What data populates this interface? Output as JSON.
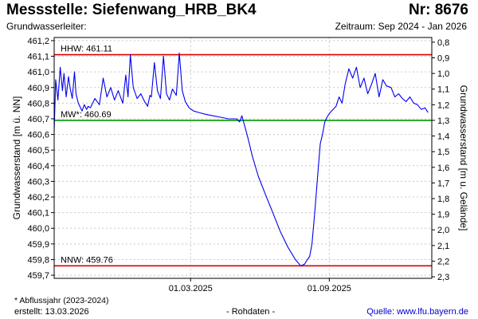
{
  "header": {
    "title": "Messstelle: Siefenwang_HRB_BK4",
    "number": "Nr: 8676",
    "subtitle_left": "Grundwasserleiter:",
    "period": "Zeitraum: Sep 2024 - Jan 2026"
  },
  "footer": {
    "footnote": "* Abflussjahr (2023-2024)",
    "created": "erstellt:  13.03.2026",
    "raw_data": "- Rohdaten -",
    "source_prefix": "Quelle: ",
    "source_link": "www.lfu.bayern.de"
  },
  "colors": {
    "series": "#0000ee",
    "hhw": "#dd0000",
    "mw": "#009900",
    "nnw": "#dd0000",
    "grid": "#c8c8c8"
  },
  "chart_data": {
    "type": "line",
    "ylabel_left": "Grundwasserstand [m ü. NN]",
    "ylabel_right": "Grundwasserstand [m u. Gelände]",
    "ylim": [
      459.68,
      461.22
    ],
    "yticks": [
      "461,2",
      "461,1",
      "461,0",
      "460,9",
      "460,8",
      "460,7",
      "460,6",
      "460,5",
      "460,4",
      "460,3",
      "460,2",
      "460,1",
      "460,0",
      "459,9",
      "459,8",
      "459,7"
    ],
    "ytick_values": [
      461.2,
      461.1,
      461.0,
      460.9,
      460.8,
      460.7,
      460.6,
      460.5,
      460.4,
      460.3,
      460.2,
      460.1,
      460.0,
      459.9,
      459.8,
      459.7
    ],
    "right_axis_reference": 461.99,
    "right_ticks": [
      "0,8",
      "0,9",
      "1,0",
      "1,1",
      "1,2",
      "1,3",
      "1,4",
      "1,5",
      "1,6",
      "1,7",
      "1,8",
      "1,9",
      "2,0",
      "2,1",
      "2,2",
      "2,3"
    ],
    "right_tick_values": [
      0.8,
      0.9,
      1.0,
      1.1,
      1.2,
      1.3,
      1.4,
      1.5,
      1.6,
      1.7,
      1.8,
      1.9,
      2.0,
      2.1,
      2.2,
      2.3
    ],
    "xlim": [
      "2024-09-01",
      "2026-01-15"
    ],
    "xticks": [
      {
        "date": "2025-03-01",
        "label": "01.03.2025"
      },
      {
        "date": "2025-09-01",
        "label": "01.09.2025"
      }
    ],
    "grid": true,
    "reference_lines": [
      {
        "key": "hhw",
        "label": "HHW: 461.11",
        "value": 461.11
      },
      {
        "key": "mw",
        "label": "MW*: 460.69",
        "value": 460.69
      },
      {
        "key": "nnw",
        "label": "NNW: 459.76",
        "value": 459.76
      }
    ],
    "series": [
      {
        "x": [
          "2024-09-01",
          "2024-09-03",
          "2024-09-06",
          "2024-09-09",
          "2024-09-12",
          "2024-09-14",
          "2024-09-17",
          "2024-09-20",
          "2024-09-22",
          "2024-09-25",
          "2024-09-28",
          "2024-09-30",
          "2024-10-03",
          "2024-10-06",
          "2024-10-08",
          "2024-10-11",
          "2024-10-14",
          "2024-10-16",
          "2024-10-19",
          "2024-10-22",
          "2024-10-25",
          "2024-10-28",
          "2024-10-31",
          "2024-11-05",
          "2024-11-10",
          "2024-11-15",
          "2024-11-20",
          "2024-11-25",
          "2024-12-01",
          "2024-12-05",
          "2024-12-08",
          "2024-12-11",
          "2024-12-15",
          "2024-12-20",
          "2024-12-25",
          "2024-12-30",
          "2025-01-03",
          "2025-01-06",
          "2025-01-08",
          "2025-01-12",
          "2025-01-16",
          "2025-01-20",
          "2025-01-24",
          "2025-01-28",
          "2025-02-01",
          "2025-02-05",
          "2025-02-10",
          "2025-02-14",
          "2025-02-18",
          "2025-02-22",
          "2025-02-27",
          "2025-03-05",
          "2025-03-12",
          "2025-03-20",
          "2025-03-30",
          "2025-04-10",
          "2025-04-20",
          "2025-05-01",
          "2025-05-05",
          "2025-05-08",
          "2025-05-12",
          "2025-05-16",
          "2025-05-22",
          "2025-05-30",
          "2025-06-08",
          "2025-06-18",
          "2025-06-28",
          "2025-07-08",
          "2025-07-18",
          "2025-07-25",
          "2025-07-30",
          "2025-08-03",
          "2025-08-06",
          "2025-08-09",
          "2025-08-13",
          "2025-08-17",
          "2025-08-20",
          "2025-08-23",
          "2025-08-26",
          "2025-08-29",
          "2025-09-02",
          "2025-09-06",
          "2025-09-10",
          "2025-09-14",
          "2025-09-18",
          "2025-09-22",
          "2025-09-27",
          "2025-10-02",
          "2025-10-07",
          "2025-10-12",
          "2025-10-17",
          "2025-10-22",
          "2025-10-27",
          "2025-11-01",
          "2025-11-06",
          "2025-11-11",
          "2025-11-16",
          "2025-11-22",
          "2025-11-27",
          "2025-12-02",
          "2025-12-07",
          "2025-12-12",
          "2025-12-17",
          "2025-12-22",
          "2025-12-27",
          "2026-01-01",
          "2026-01-06",
          "2026-01-10"
        ],
        "y": [
          460.62,
          460.95,
          460.82,
          461.03,
          460.88,
          460.99,
          460.84,
          460.97,
          460.9,
          460.83,
          461.0,
          460.86,
          460.8,
          460.77,
          460.75,
          460.79,
          460.76,
          460.78,
          460.77,
          460.8,
          460.83,
          460.81,
          460.79,
          460.96,
          460.84,
          460.9,
          460.82,
          460.88,
          460.8,
          460.98,
          460.84,
          461.11,
          460.9,
          460.83,
          460.86,
          460.81,
          460.78,
          460.85,
          460.84,
          461.06,
          460.88,
          460.83,
          461.1,
          460.86,
          460.82,
          460.89,
          460.85,
          461.12,
          460.88,
          460.81,
          460.77,
          460.75,
          460.74,
          460.73,
          460.72,
          460.71,
          460.7,
          460.7,
          460.68,
          460.72,
          460.65,
          460.58,
          460.46,
          460.33,
          460.22,
          460.1,
          459.98,
          459.88,
          459.8,
          459.76,
          459.77,
          459.8,
          459.82,
          459.9,
          460.12,
          460.36,
          460.54,
          460.6,
          460.68,
          460.71,
          460.74,
          460.76,
          460.78,
          460.84,
          460.8,
          460.92,
          461.02,
          460.96,
          461.03,
          460.9,
          460.96,
          460.86,
          460.92,
          460.99,
          460.84,
          460.95,
          460.91,
          460.9,
          460.84,
          460.86,
          460.83,
          460.81,
          460.84,
          460.8,
          460.79,
          460.76,
          460.77,
          460.74
        ]
      }
    ]
  }
}
